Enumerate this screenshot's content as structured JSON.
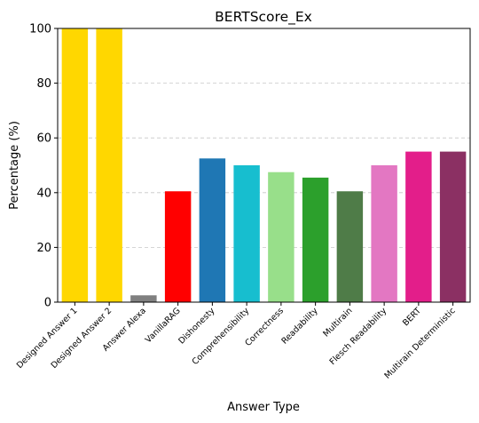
{
  "chart_data": {
    "type": "bar",
    "title": "BERTScore_Ex",
    "xlabel": "Answer Type",
    "ylabel": "Percentage (%)",
    "ylim": [
      0,
      100
    ],
    "yticks": [
      0,
      20,
      40,
      60,
      80,
      100
    ],
    "grid": "y-dashed",
    "categories": [
      "Designed Answer 1",
      "Designed Answer 2",
      "Answer Alexa",
      "VanillaRAG",
      "Dishonesty",
      "Comprehensibility",
      "Correctness",
      "Readability",
      "Multirain",
      "Flesch Readability",
      "BERT",
      "Multirain Deterministic"
    ],
    "values": [
      100,
      100,
      2.5,
      40.5,
      52.5,
      50,
      47.5,
      45.5,
      40.5,
      50,
      55,
      55
    ],
    "colors": [
      "#FFD700",
      "#FFD700",
      "#808080",
      "#FF0000",
      "#1F77B4",
      "#17BECF",
      "#98DF8A",
      "#2CA02C",
      "#4F7C48",
      "#E377C2",
      "#E31E8A",
      "#8B3063"
    ]
  }
}
